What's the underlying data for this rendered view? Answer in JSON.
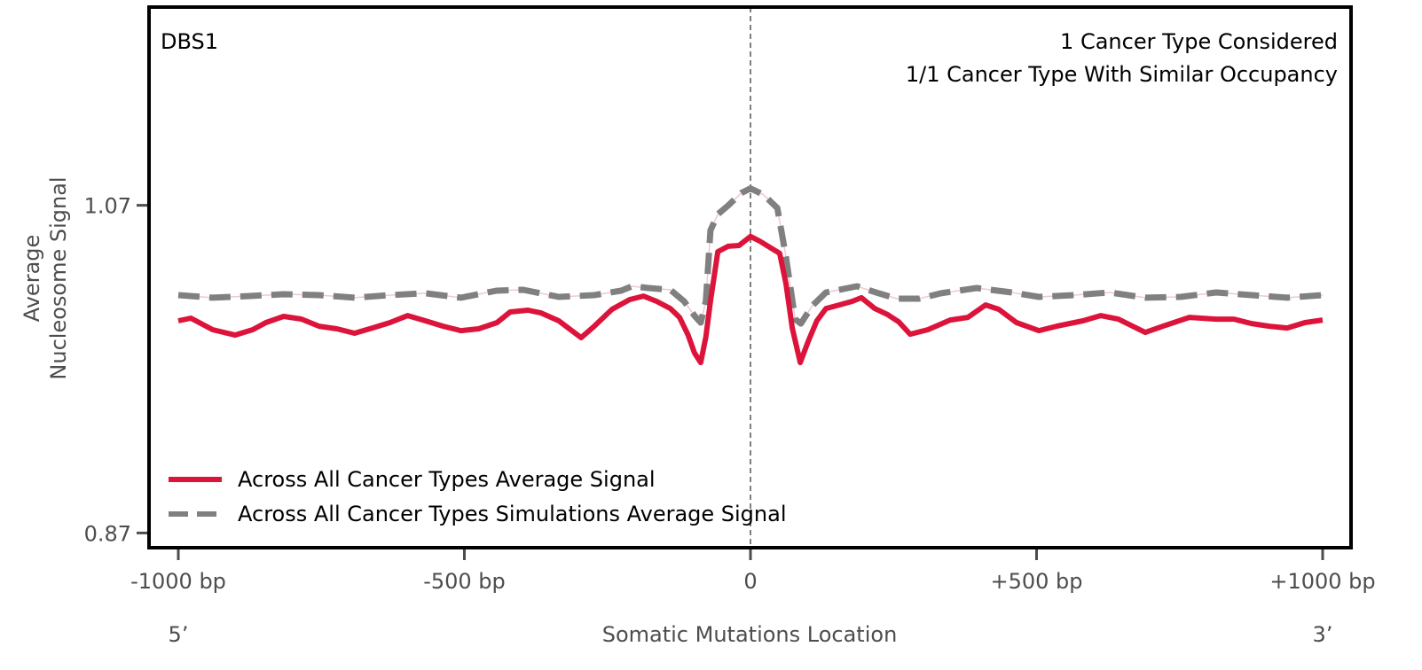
{
  "chart_data": {
    "type": "line",
    "title": "",
    "xlabel": "Somatic Mutations Location",
    "ylabel": "Average\nNucleosome Signal",
    "ylabel_lines": [
      "Average",
      "Nucleosome Signal"
    ],
    "xlim": [
      -1000,
      1000
    ],
    "ylim": [
      0.861,
      1.191
    ],
    "x_ticks": [
      -1000,
      -500,
      0,
      500,
      1000
    ],
    "x_tick_labels": [
      "-1000 bp",
      "-500 bp",
      "0",
      "+500 bp",
      "+1000 bp"
    ],
    "y_ticks": [
      1.07,
      0.87
    ],
    "y_tick_labels": [
      "1.07",
      "0.87"
    ],
    "end_labels": {
      "left": "5’",
      "right": "3’"
    },
    "grid": false,
    "vertical_reference_line": {
      "x": 0,
      "style": "dashed",
      "color": "#808080"
    },
    "annotations": {
      "top_left": "DBS1",
      "top_right": [
        "1 Cancer Type Considered",
        "1/1 Cancer Type With Similar Occupancy"
      ]
    },
    "legend": {
      "placement": "lower-left",
      "entries": [
        {
          "label": "Across All Cancer Types Average Signal",
          "color": "#dc143c",
          "style": "solid"
        },
        {
          "label": "Across All Cancer Types Simulations Average Signal",
          "color": "#808080",
          "style": "dashed"
        }
      ]
    },
    "series": [
      {
        "name": "Across All Cancer Types Average Signal",
        "color": "#dc143c",
        "style": "solid",
        "x": [
          -1000,
          -978,
          -940,
          -901,
          -870,
          -847,
          -816,
          -785,
          -754,
          -723,
          -692,
          -661,
          -630,
          -599,
          -568,
          -537,
          -506,
          -475,
          -443,
          -420,
          -389,
          -366,
          -335,
          -296,
          -273,
          -242,
          -211,
          -187,
          -164,
          -140,
          -124,
          -109,
          -98,
          -87,
          -78,
          -70,
          -57,
          -39,
          -20,
          0,
          16,
          36,
          51,
          62,
          73,
          87,
          101,
          116,
          132,
          155,
          178,
          194,
          217,
          240,
          259,
          279,
          310,
          349,
          380,
          411,
          434,
          465,
          504,
          535,
          581,
          612,
          643,
          690,
          721,
          767,
          814,
          845,
          876,
          907,
          938,
          969,
          1000
        ],
        "y": [
          0.9995,
          1.0011,
          0.9941,
          0.9908,
          0.9941,
          0.9984,
          1.0022,
          1.0006,
          0.9962,
          0.9946,
          0.9919,
          0.9951,
          0.9984,
          1.0027,
          0.9995,
          0.9962,
          0.9935,
          0.9946,
          0.9984,
          1.0049,
          1.006,
          1.0043,
          0.9995,
          0.9892,
          0.9962,
          1.0065,
          1.0125,
          1.0146,
          1.0114,
          1.007,
          1.0016,
          0.9908,
          0.98,
          0.974,
          0.9897,
          1.0114,
          1.0417,
          1.045,
          1.0455,
          1.051,
          1.0482,
          1.0439,
          1.0407,
          1.0222,
          0.9951,
          0.974,
          0.987,
          0.9995,
          1.007,
          1.0092,
          1.0114,
          1.0136,
          1.007,
          1.0032,
          0.9989,
          0.9913,
          0.9941,
          1.0,
          1.0016,
          1.0092,
          1.0065,
          0.9984,
          0.9935,
          0.9962,
          0.9995,
          1.0027,
          1.0005,
          0.9924,
          0.9962,
          1.0016,
          1.0005,
          1.0005,
          0.9978,
          0.9962,
          0.9951,
          0.9984,
          1.0
        ]
      },
      {
        "name": "Across All Cancer Types Simulations Average Signal",
        "color": "#808080",
        "style": "dashed",
        "x": [
          -1000,
          -940,
          -878,
          -816,
          -754,
          -692,
          -630,
          -568,
          -506,
          -444,
          -397,
          -335,
          -273,
          -226,
          -207,
          -178,
          -140,
          -116,
          -98,
          -87,
          -78,
          -70,
          -57,
          -39,
          -16,
          0,
          23,
          47,
          62,
          78,
          88,
          108,
          132,
          186,
          224,
          256,
          295,
          333,
          395,
          457,
          504,
          566,
          628,
          690,
          752,
          814,
          876,
          938,
          1000
        ],
        "y": [
          1.0152,
          1.0136,
          1.0146,
          1.0157,
          1.0152,
          1.0136,
          1.0152,
          1.0163,
          1.0136,
          1.0179,
          1.0184,
          1.0141,
          1.0152,
          1.0179,
          1.0206,
          1.0195,
          1.0184,
          1.0114,
          1.0027,
          0.9984,
          1.0114,
          1.0547,
          1.0645,
          1.0699,
          1.0775,
          1.0803,
          1.0764,
          1.0683,
          1.0385,
          1.0005,
          0.9978,
          1.0087,
          1.0168,
          1.0206,
          1.0163,
          1.013,
          1.013,
          1.0163,
          1.0195,
          1.0168,
          1.0141,
          1.0152,
          1.0168,
          1.0136,
          1.0141,
          1.0168,
          1.0152,
          1.0136,
          1.0152
        ]
      }
    ]
  }
}
